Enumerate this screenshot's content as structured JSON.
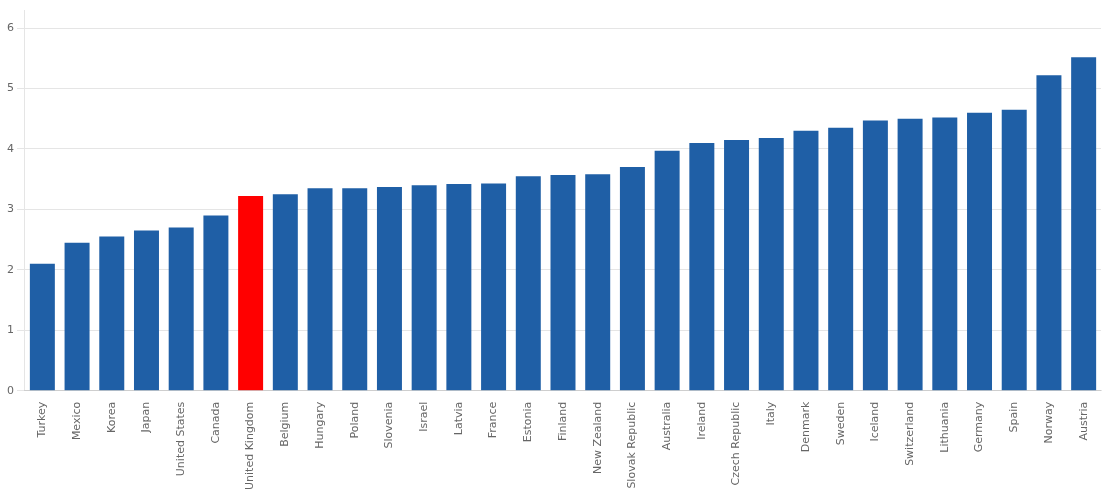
{
  "chart_data": {
    "type": "bar",
    "categories": [
      "Turkey",
      "Mexico",
      "Korea",
      "Japan",
      "United States",
      "Canada",
      "United Kingdom",
      "Belgium",
      "Hungary",
      "Poland",
      "Slovenia",
      "Israel",
      "Latvia",
      "France",
      "Estonia",
      "Finland",
      "New Zealand",
      "Slovak Republic",
      "Australia",
      "Ireland",
      "Czech Republic",
      "Italy",
      "Denmark",
      "Sweden",
      "Iceland",
      "Switzerland",
      "Lithuania",
      "Germany",
      "Spain",
      "Norway",
      "Austria"
    ],
    "values": [
      2.1,
      2.45,
      2.55,
      2.65,
      2.7,
      2.9,
      3.22,
      3.25,
      3.35,
      3.35,
      3.37,
      3.4,
      3.42,
      3.43,
      3.55,
      3.57,
      3.58,
      3.7,
      3.97,
      4.1,
      4.15,
      4.18,
      4.3,
      4.35,
      4.47,
      4.5,
      4.52,
      4.6,
      4.65,
      5.22,
      5.52
    ],
    "colors": [
      "#1F5FA6",
      "#1F5FA6",
      "#1F5FA6",
      "#1F5FA6",
      "#1F5FA6",
      "#1F5FA6",
      "#FF0000",
      "#1F5FA6",
      "#1F5FA6",
      "#1F5FA6",
      "#1F5FA6",
      "#1F5FA6",
      "#1F5FA6",
      "#1F5FA6",
      "#1F5FA6",
      "#1F5FA6",
      "#1F5FA6",
      "#1F5FA6",
      "#1F5FA6",
      "#1F5FA6",
      "#1F5FA6",
      "#1F5FA6",
      "#1F5FA6",
      "#1F5FA6",
      "#1F5FA6",
      "#1F5FA6",
      "#1F5FA6",
      "#1F5FA6",
      "#1F5FA6",
      "#1F5FA6",
      "#1F5FA6"
    ],
    "ylim": [
      0,
      6.3
    ],
    "yticks": [
      0,
      1,
      2,
      3,
      4,
      5,
      6
    ],
    "grid": true
  }
}
